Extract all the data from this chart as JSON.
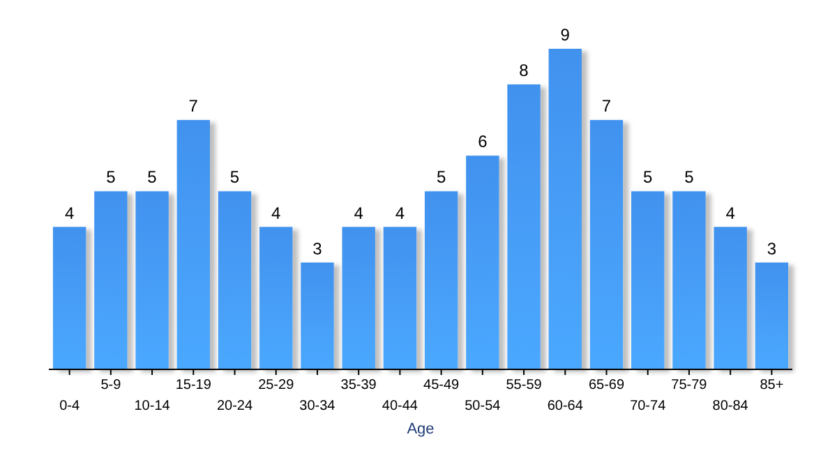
{
  "chart_data": {
    "type": "bar",
    "xlabel": "Age",
    "categories": [
      "0-4",
      "5-9",
      "10-14",
      "15-19",
      "20-24",
      "25-29",
      "30-34",
      "35-39",
      "40-44",
      "45-49",
      "50-54",
      "55-59",
      "60-64",
      "65-69",
      "70-74",
      "75-79",
      "80-84",
      "85+"
    ],
    "values": [
      4,
      5,
      5,
      7,
      5,
      4,
      3,
      4,
      4,
      5,
      6,
      8,
      9,
      7,
      5,
      5,
      4,
      3
    ],
    "color": "#4192ee",
    "data_labels": true
  }
}
